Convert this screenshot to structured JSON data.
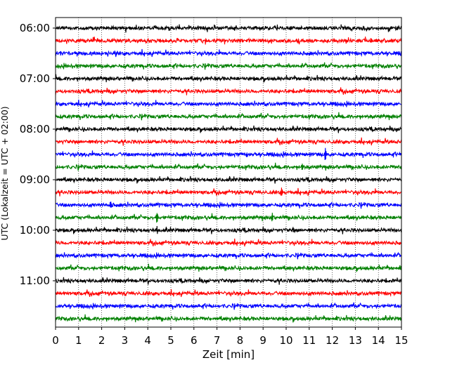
{
  "chart_data": {
    "type": "line",
    "subtype": "helicorder",
    "title": "",
    "xlabel": "Zeit  [min]",
    "ylabel": "UTC (Lokalzeit = UTC + 02:00)",
    "xlim": [
      0,
      15
    ],
    "x_ticks": [
      "0",
      "1",
      "2",
      "3",
      "4",
      "5",
      "6",
      "7",
      "8",
      "9",
      "10",
      "11",
      "12",
      "13",
      "14",
      "15"
    ],
    "y_tick_labels": [
      "06:00",
      "07:00",
      "08:00",
      "09:00",
      "10:00",
      "11:00"
    ],
    "vertical_grid": "dotted",
    "trace_interval_minutes": 15,
    "trace_start_times": [
      "06:00",
      "06:15",
      "06:30",
      "06:45",
      "07:00",
      "07:15",
      "07:30",
      "07:45",
      "08:00",
      "08:15",
      "08:30",
      "08:45",
      "09:00",
      "09:15",
      "09:30",
      "09:45",
      "10:00",
      "10:15",
      "10:30",
      "10:45",
      "11:00",
      "11:15",
      "11:30",
      "11:45"
    ],
    "trace_color_cycle": [
      "#000000",
      "#ff0000",
      "#0000ff",
      "#008000"
    ],
    "events": [
      {
        "trace": "08:30",
        "minute": 11.7,
        "amplitude": 0.5
      },
      {
        "trace": "08:30",
        "minute": 8.3,
        "amplitude": 0.2
      },
      {
        "trace": "08:45",
        "minute": 10.7,
        "amplitude": 0.25
      },
      {
        "trace": "09:15",
        "minute": 9.8,
        "amplitude": 0.45
      },
      {
        "trace": "09:30",
        "minute": 2.4,
        "amplitude": 0.3
      },
      {
        "trace": "09:30",
        "minute": 4.4,
        "amplitude": 0.2
      },
      {
        "trace": "09:45",
        "minute": 4.4,
        "amplitude": 0.5
      },
      {
        "trace": "09:45",
        "minute": 9.4,
        "amplitude": 0.4
      },
      {
        "trace": "10:00",
        "minute": 4.4,
        "amplitude": 0.35
      },
      {
        "trace": "10:00",
        "minute": 10.3,
        "amplitude": 0.15
      },
      {
        "trace": "06:00",
        "minute": 3.5,
        "amplitude": 0.15
      }
    ]
  }
}
